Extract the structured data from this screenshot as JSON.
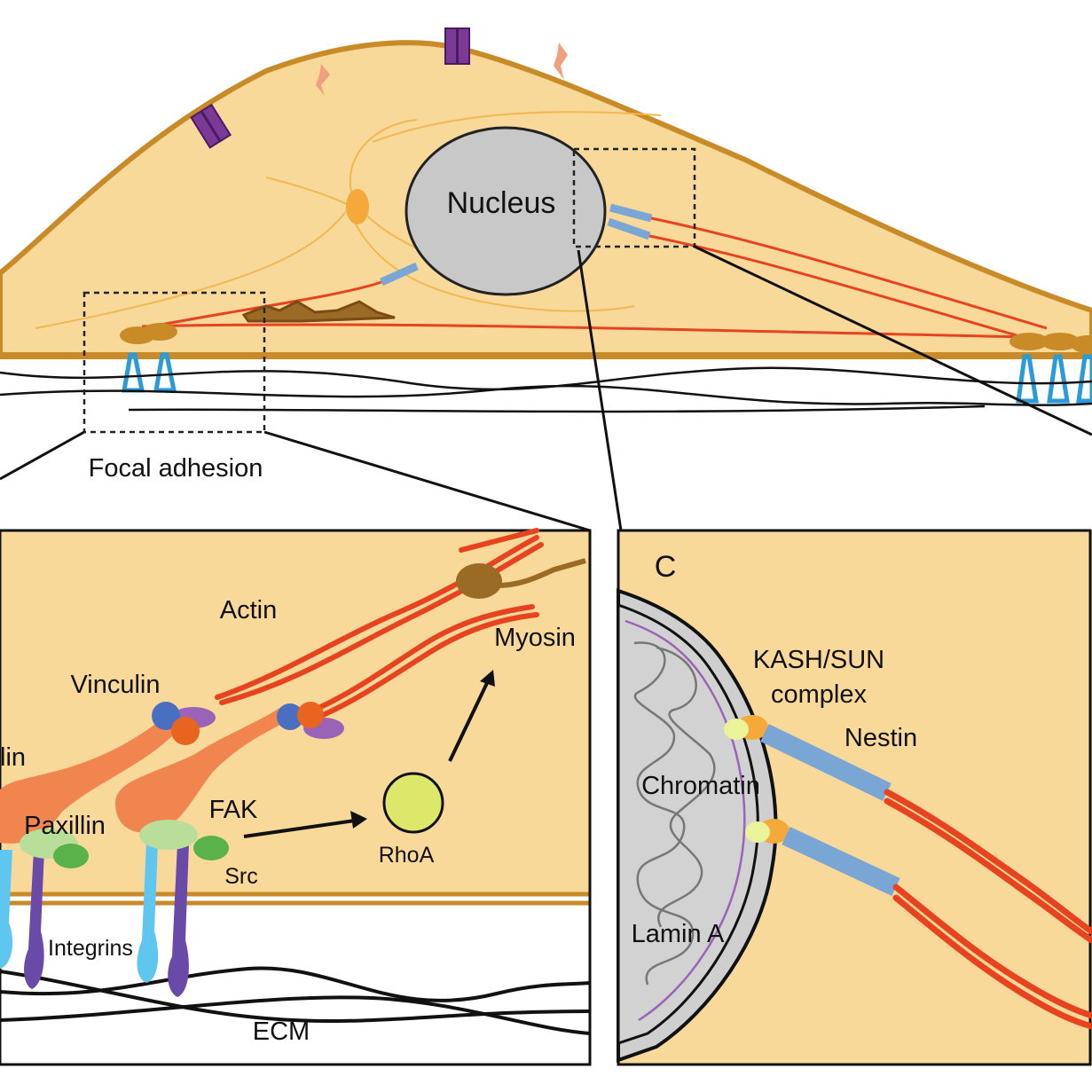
{
  "labels": {
    "nucleus": "Nucleus",
    "focal_adhesion": "Focal adhesion",
    "actin": "Actin",
    "myosin": "Myosin",
    "vinculin": "Vinculin",
    "talin_partial": "lin",
    "paxillin": "Paxillin",
    "fak": "FAK",
    "src": "Src",
    "rhoa": "RhoA",
    "integrins": "Integrins",
    "ecm": "ECM",
    "panel_c": "C",
    "kash_sun_line1": "KASH/SUN",
    "kash_sun_line2": "complex",
    "nestin": "Nestin",
    "chromatin": "Chromatin",
    "lamin_a": "Lamin A"
  },
  "colors": {
    "cytoplasm": "#f9d99a",
    "membrane": "#c98a28",
    "nucleus": "#c8c8c8",
    "actin": "#e8431f",
    "myosin": "#9a6b25",
    "talin": "#f08550",
    "paxillin": "#b9de9a",
    "src": "#5ab34a",
    "rhoa": "#dde86a",
    "integrin_alpha": "#5fc6f0",
    "integrin_beta": "#6a4aa8",
    "vinculin_blue": "#4a6fc0",
    "vinculin_purple": "#9a63b8",
    "nestin": "#7aa6d6",
    "kash_sun": "#f4a93a",
    "ion_channel": "#7a3a96",
    "receptor": "#f0a080",
    "lamin": "#9a63b8",
    "ecm_fiber": "#111111"
  }
}
